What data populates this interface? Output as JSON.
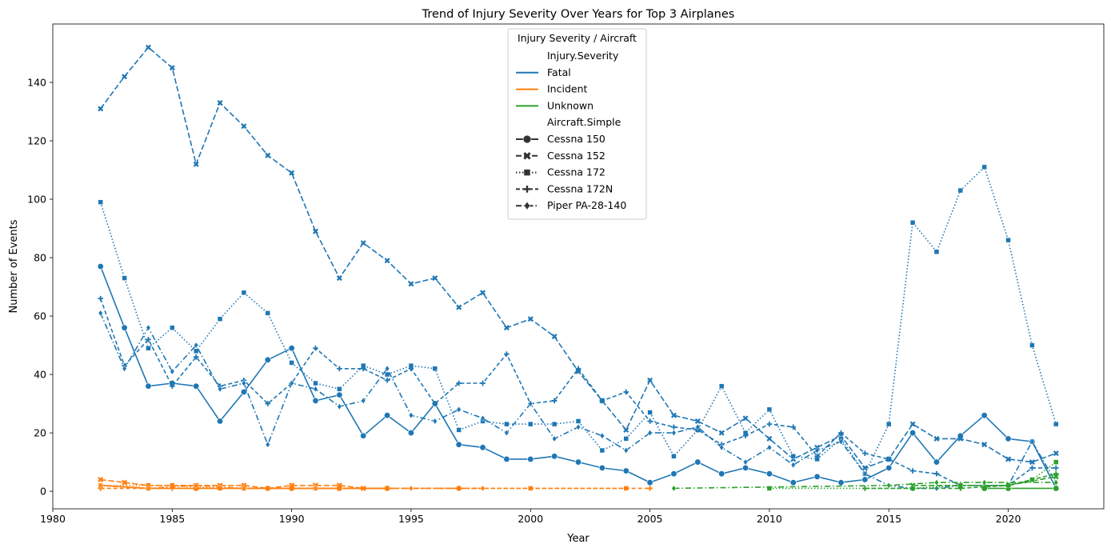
{
  "chart_data": {
    "type": "line",
    "title": "Trend of Injury Severity Over Years for Top 3 Airplanes",
    "xlabel": "Year",
    "ylabel": "Number of Events",
    "xlim": [
      1980,
      2024
    ],
    "ylim": [
      -6,
      160
    ],
    "xticks": [
      1980,
      1985,
      1990,
      1995,
      2000,
      2005,
      2010,
      2015,
      2020
    ],
    "yticks": [
      0,
      20,
      40,
      60,
      80,
      100,
      120,
      140
    ],
    "grid": false,
    "legend": {
      "placement": "upper-center",
      "title": "Injury Severity / Aircraft",
      "hue_header": "Injury.Severity",
      "style_header": "Aircraft.Simple",
      "hue_entries": [
        {
          "label": "Fatal",
          "color": "#1f77b4"
        },
        {
          "label": "Incident",
          "color": "#ff7f0e"
        },
        {
          "label": "Unknown",
          "color": "#2ca02c"
        }
      ],
      "style_entries": [
        {
          "label": "Cessna 150",
          "dash": "solid",
          "marker": "circle"
        },
        {
          "label": "Cessna 152",
          "dash": "dashed",
          "marker": "x"
        },
        {
          "label": "Cessna 172",
          "dash": "dotted",
          "marker": "square"
        },
        {
          "label": "Cessna 172N",
          "dash": "dashed-long",
          "marker": "plus"
        },
        {
          "label": "Piper PA-28-140",
          "dash": "dashdot",
          "marker": "diamond"
        }
      ]
    },
    "series": [
      {
        "severity": "Fatal",
        "aircraft": "Cessna 150",
        "x": [
          1982,
          1983,
          1984,
          1985,
          1986,
          1987,
          1988,
          1989,
          1990,
          1991,
          1992,
          1993,
          1994,
          1995,
          1996,
          1997,
          1998,
          1999,
          2000,
          2001,
          2002,
          2003,
          2004,
          2005,
          2006,
          2007,
          2008,
          2009,
          2010,
          2011,
          2012,
          2013,
          2014,
          2015,
          2016,
          2017,
          2018,
          2019,
          2020,
          2021,
          2022
        ],
        "y": [
          77,
          56,
          36,
          37,
          36,
          24,
          34,
          45,
          49,
          31,
          33,
          19,
          26,
          20,
          30,
          16,
          15,
          11,
          11,
          12,
          10,
          8,
          7,
          3,
          6,
          10,
          6,
          8,
          6,
          3,
          5,
          3,
          4,
          8,
          20,
          10,
          19,
          26,
          18,
          17,
          1
        ]
      },
      {
        "severity": "Fatal",
        "aircraft": "Cessna 152",
        "x": [
          1982,
          1983,
          1984,
          1985,
          1986,
          1987,
          1988,
          1989,
          1990,
          1991,
          1992,
          1993,
          1994,
          1995,
          1996,
          1997,
          1998,
          1999,
          2000,
          2001,
          2002,
          2003,
          2004,
          2005,
          2006,
          2007,
          2008,
          2009,
          2010,
          2011,
          2012,
          2013,
          2014,
          2015,
          2016,
          2017,
          2018,
          2019,
          2020,
          2021,
          2022
        ],
        "y": [
          131,
          142,
          152,
          145,
          112,
          133,
          125,
          115,
          109,
          89,
          73,
          85,
          79,
          71,
          73,
          63,
          68,
          56,
          59,
          53,
          41,
          31,
          21,
          38,
          26,
          24,
          20,
          25,
          18,
          11,
          15,
          19,
          8,
          11,
          23,
          18,
          18,
          16,
          11,
          10,
          13
        ]
      },
      {
        "severity": "Fatal",
        "aircraft": "Cessna 172",
        "x": [
          1982,
          1983,
          1984,
          1985,
          1986,
          1987,
          1988,
          1989,
          1990,
          1991,
          1992,
          1993,
          1994,
          1995,
          1996,
          1997,
          1998,
          1999,
          2000,
          2001,
          2002,
          2003,
          2004,
          2005,
          2006,
          2007,
          2008,
          2009,
          2010,
          2011,
          2012,
          2013,
          2014,
          2015,
          2016,
          2017,
          2018,
          2019,
          2020,
          2021,
          2022
        ],
        "y": [
          99,
          73,
          49,
          56,
          48,
          59,
          68,
          61,
          44,
          37,
          35,
          43,
          40,
          43,
          42,
          21,
          24,
          23,
          23,
          23,
          24,
          14,
          18,
          27,
          12,
          21,
          36,
          20,
          28,
          12,
          11,
          18,
          6,
          23,
          92,
          82,
          103,
          111,
          86,
          50,
          23
        ]
      },
      {
        "severity": "Fatal",
        "aircraft": "Cessna 172N",
        "x": [
          1982,
          1983,
          1984,
          1985,
          1986,
          1987,
          1988,
          1989,
          1990,
          1991,
          1992,
          1993,
          1994,
          1995,
          1996,
          1997,
          1998,
          1999,
          2000,
          2001,
          2002,
          2003,
          2004,
          2005,
          2006,
          2007,
          2008,
          2009,
          2010,
          2011,
          2012,
          2013,
          2014,
          2015,
          2016,
          2017,
          2018,
          2019,
          2020,
          2021,
          2022
        ],
        "y": [
          66,
          43,
          52,
          36,
          46,
          36,
          38,
          30,
          37,
          49,
          42,
          42,
          38,
          42,
          30,
          37,
          37,
          47,
          30,
          31,
          42,
          31,
          34,
          24,
          22,
          21,
          16,
          19,
          23,
          22,
          12,
          20,
          13,
          11,
          7,
          6,
          2,
          2,
          2,
          8,
          8
        ]
      },
      {
        "severity": "Fatal",
        "aircraft": "Piper PA-28-140",
        "x": [
          1982,
          1983,
          1984,
          1985,
          1986,
          1987,
          1988,
          1989,
          1990,
          1991,
          1992,
          1993,
          1994,
          1995,
          1996,
          1997,
          1998,
          1999,
          2000,
          2001,
          2002,
          2003,
          2004,
          2005,
          2006,
          2007,
          2008,
          2009,
          2010,
          2011,
          2012,
          2013,
          2014,
          2015,
          2016,
          2017,
          2018,
          2019,
          2020,
          2021,
          2022
        ],
        "y": [
          61,
          42,
          56,
          41,
          50,
          35,
          37,
          16,
          37,
          35,
          29,
          31,
          42,
          26,
          24,
          28,
          25,
          20,
          30,
          18,
          22,
          19,
          14,
          20,
          20,
          22,
          15,
          10,
          15,
          9,
          14,
          17,
          6,
          2,
          1,
          1,
          2,
          2,
          2,
          17,
          3
        ]
      },
      {
        "severity": "Incident",
        "aircraft": "Cessna 150",
        "x": [
          1982,
          1984,
          1986,
          1988,
          1990,
          1992,
          1994
        ],
        "y": [
          2,
          1,
          1,
          1,
          1,
          1,
          1
        ]
      },
      {
        "severity": "Incident",
        "aircraft": "Cessna 152",
        "x": [
          1982,
          1983,
          1984,
          1985,
          1986,
          1987,
          1988,
          1989,
          1990,
          1991,
          1992,
          1993,
          1994
        ],
        "y": [
          4,
          3,
          2,
          2,
          2,
          2,
          2,
          1,
          2,
          2,
          2,
          1,
          1
        ]
      },
      {
        "severity": "Incident",
        "aircraft": "Cessna 172",
        "x": [
          1982,
          1984,
          1985,
          1987,
          1989,
          1991,
          1994,
          1997,
          2000,
          2004
        ],
        "y": [
          2,
          2,
          2,
          1,
          1,
          1,
          1,
          1,
          1,
          1
        ]
      },
      {
        "severity": "Incident",
        "aircraft": "Cessna 172N",
        "x": [
          1982,
          1985,
          1989,
          1994,
          1997,
          2005
        ],
        "y": [
          1,
          1,
          1,
          1,
          1,
          1
        ]
      },
      {
        "severity": "Incident",
        "aircraft": "Piper PA-28-140",
        "x": [
          1982,
          1984,
          1986,
          1988,
          1991,
          1995,
          1998
        ],
        "y": [
          2,
          1,
          2,
          1,
          1,
          1,
          1
        ]
      },
      {
        "severity": "Unknown",
        "aircraft": "Cessna 150",
        "x": [
          2019,
          2020,
          2022
        ],
        "y": [
          1,
          1,
          1
        ]
      },
      {
        "severity": "Unknown",
        "aircraft": "Cessna 152",
        "x": [
          2016,
          2018,
          2020,
          2022
        ],
        "y": [
          2,
          2,
          2,
          5
        ]
      },
      {
        "severity": "Unknown",
        "aircraft": "Cessna 172",
        "x": [
          2010,
          2016,
          2018,
          2020,
          2021,
          2022
        ],
        "y": [
          1,
          1,
          2,
          2,
          4,
          10
        ]
      },
      {
        "severity": "Unknown",
        "aircraft": "Cessna 172N",
        "x": [
          2014,
          2016,
          2018,
          2020,
          2022
        ],
        "y": [
          1,
          1,
          1,
          2,
          6
        ]
      },
      {
        "severity": "Unknown",
        "aircraft": "Piper PA-28-140",
        "x": [
          2006,
          2015,
          2017,
          2019,
          2022
        ],
        "y": [
          1,
          2,
          3,
          3,
          3
        ]
      }
    ]
  }
}
